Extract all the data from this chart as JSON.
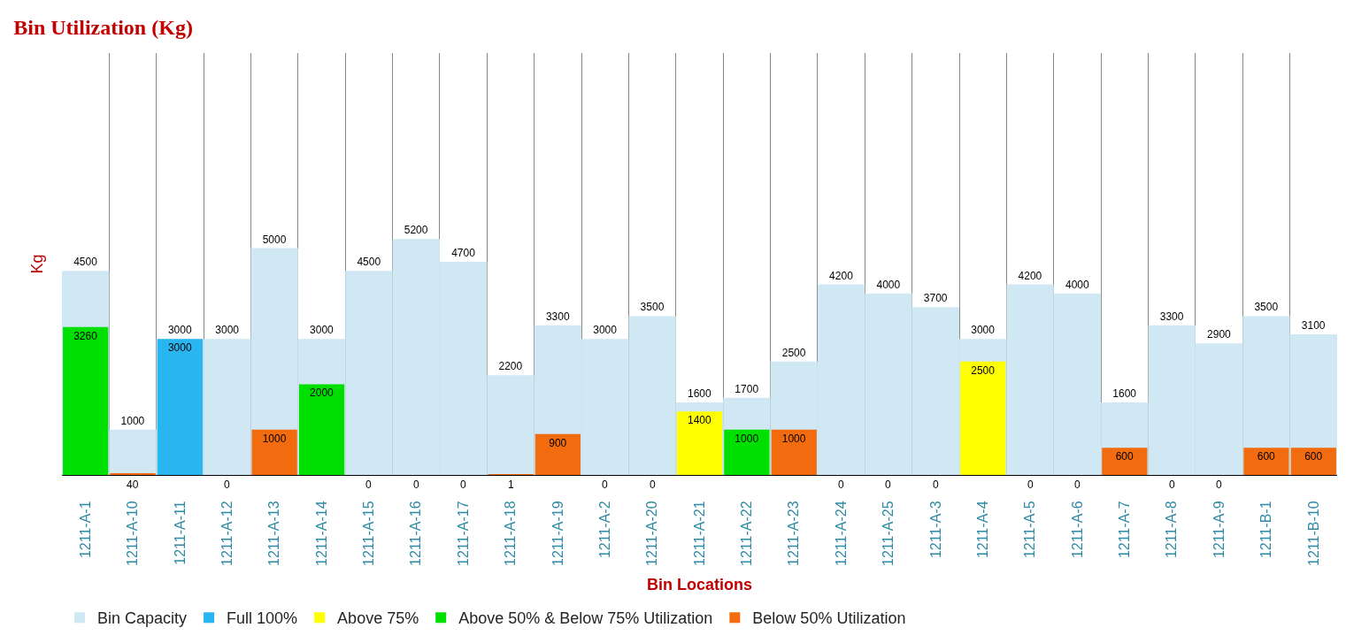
{
  "chart_data": {
    "type": "bar",
    "title": "Bin Utilization (Kg)",
    "xlabel": "Bin Locations",
    "ylabel": "Kg",
    "categories": [
      "1211-A-1",
      "1211-A-10",
      "1211-A-11",
      "1211-A-12",
      "1211-A-13",
      "1211-A-14",
      "1211-A-15",
      "1211-A-16",
      "1211-A-17",
      "1211-A-18",
      "1211-A-19",
      "1211-A-2",
      "1211-A-20",
      "1211-A-21",
      "1211-A-22",
      "1211-A-23",
      "1211-A-24",
      "1211-A-25",
      "1211-A-3",
      "1211-A-4",
      "1211-A-5",
      "1211-A-6",
      "1211-A-7",
      "1211-A-8",
      "1211-A-9",
      "1211-B-1",
      "1211-B-10"
    ],
    "series": [
      {
        "name": "Bin Capacity",
        "color": "#cfe8f3",
        "values": [
          4500,
          1000,
          3000,
          3000,
          5000,
          3000,
          4500,
          5200,
          4700,
          2200,
          3300,
          3000,
          3500,
          1600,
          1700,
          2500,
          4200,
          4000,
          3700,
          3000,
          4200,
          4000,
          1600,
          3300,
          2900,
          3500,
          3100
        ]
      },
      {
        "name": "Full 100%",
        "color": "#29b6f0",
        "values": [
          null,
          null,
          3000,
          null,
          null,
          null,
          null,
          null,
          null,
          null,
          null,
          null,
          null,
          null,
          null,
          null,
          null,
          null,
          null,
          null,
          null,
          null,
          null,
          null,
          null,
          null,
          null
        ]
      },
      {
        "name": "Above 75%",
        "color": "#ffff00",
        "values": [
          null,
          null,
          null,
          null,
          null,
          null,
          null,
          null,
          null,
          null,
          null,
          null,
          null,
          1400,
          null,
          null,
          null,
          null,
          null,
          2500,
          null,
          null,
          null,
          null,
          null,
          null,
          null
        ]
      },
      {
        "name": "Above 50% & Below 75% Utilization",
        "color": "#00e000",
        "values": [
          3260,
          null,
          null,
          null,
          null,
          2000,
          null,
          null,
          null,
          null,
          null,
          null,
          null,
          null,
          1000,
          null,
          null,
          null,
          null,
          null,
          null,
          null,
          null,
          null,
          null,
          null,
          null
        ]
      },
      {
        "name": "Below 50% Utilization",
        "color": "#f26c0f",
        "values": [
          null,
          40,
          null,
          0,
          1000,
          null,
          0,
          0,
          0,
          1,
          900,
          0,
          0,
          null,
          null,
          1000,
          0,
          0,
          0,
          null,
          0,
          0,
          600,
          0,
          0,
          600,
          600
        ]
      }
    ],
    "ylim": [
      0,
      9300
    ],
    "grid": "x",
    "legend": "bottom",
    "data_labels": true
  }
}
